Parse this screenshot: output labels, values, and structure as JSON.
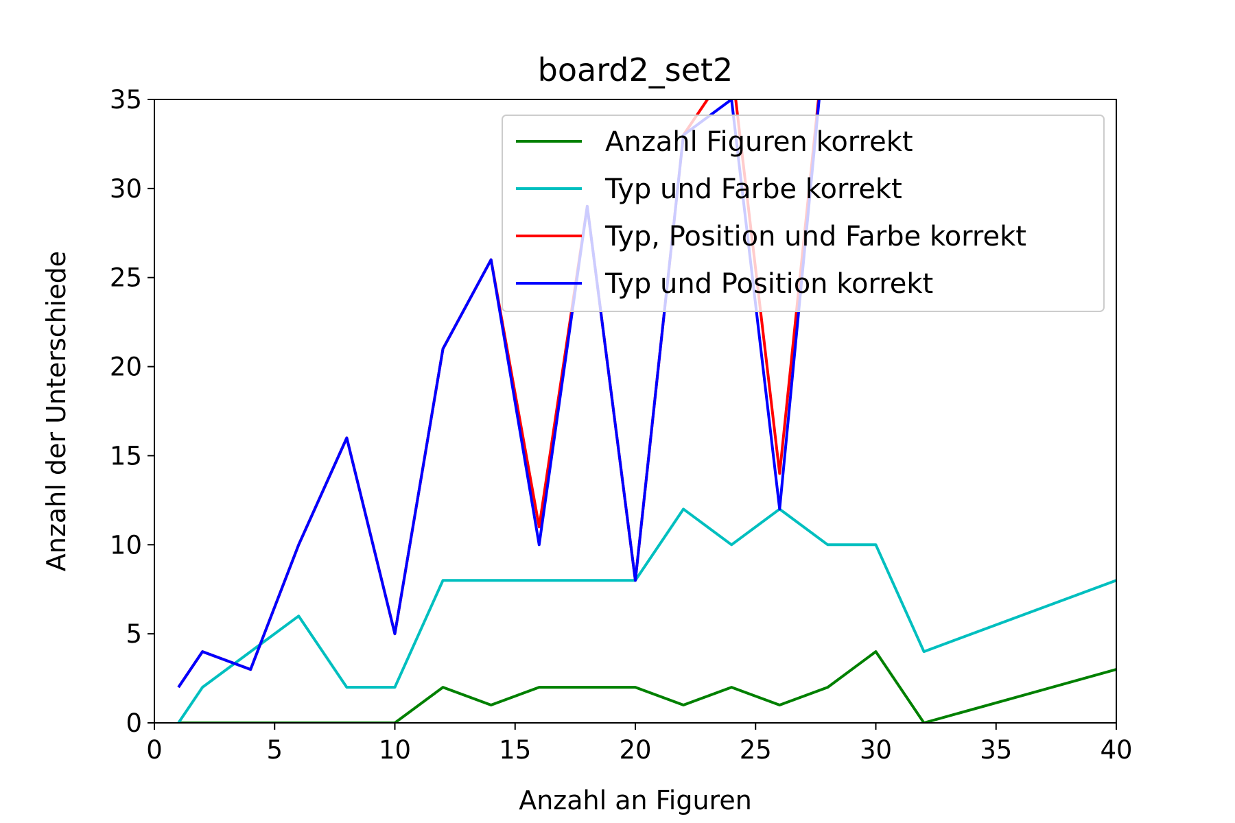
{
  "chart_data": {
    "type": "line",
    "title": "board2_set2",
    "xlabel": "Anzahl an Figuren",
    "ylabel": "Anzahl der Unterschiede",
    "xlim": [
      0,
      40
    ],
    "ylim": [
      0,
      35
    ],
    "xticks": [
      0,
      5,
      10,
      15,
      20,
      25,
      30,
      35,
      40
    ],
    "yticks": [
      0,
      5,
      10,
      15,
      20,
      25,
      30,
      35
    ],
    "grid": false,
    "legend_position": "upper-right",
    "series": [
      {
        "name": "Anzahl Figuren korrekt",
        "color": "#008000",
        "x": [
          1,
          2,
          4,
          6,
          8,
          10,
          12,
          14,
          16,
          18,
          20,
          22,
          24,
          26,
          28,
          30,
          32,
          40
        ],
        "y": [
          0,
          0,
          0,
          0,
          0,
          0,
          2,
          1,
          2,
          2,
          2,
          1,
          2,
          1,
          2,
          4,
          0,
          3
        ]
      },
      {
        "name": "Typ und Farbe korrekt",
        "color": "#00bfbf",
        "x": [
          1,
          2,
          4,
          6,
          8,
          10,
          12,
          14,
          16,
          18,
          20,
          22,
          24,
          26,
          28,
          30,
          32,
          40
        ],
        "y": [
          0,
          2,
          4,
          6,
          2,
          2,
          8,
          8,
          8,
          8,
          8,
          12,
          10,
          12,
          10,
          10,
          4,
          8
        ]
      },
      {
        "name": "Typ, Position und Farbe korrekt",
        "color": "#ff0000",
        "x": [
          1,
          2,
          4,
          6,
          8,
          10,
          12,
          14,
          16,
          18,
          20,
          22,
          24,
          26,
          28
        ],
        "y": [
          2,
          4,
          3,
          10,
          16,
          5,
          21,
          26,
          11,
          29,
          8,
          33,
          37,
          14,
          40
        ]
      },
      {
        "name": "Typ und Position korrekt",
        "color": "#0000ff",
        "x": [
          1,
          2,
          4,
          6,
          8,
          10,
          12,
          14,
          16,
          18,
          20,
          22,
          24,
          26,
          28
        ],
        "y": [
          2,
          4,
          3,
          10,
          16,
          5,
          21,
          26,
          10,
          29,
          8,
          33,
          35,
          12,
          40
        ]
      }
    ]
  }
}
